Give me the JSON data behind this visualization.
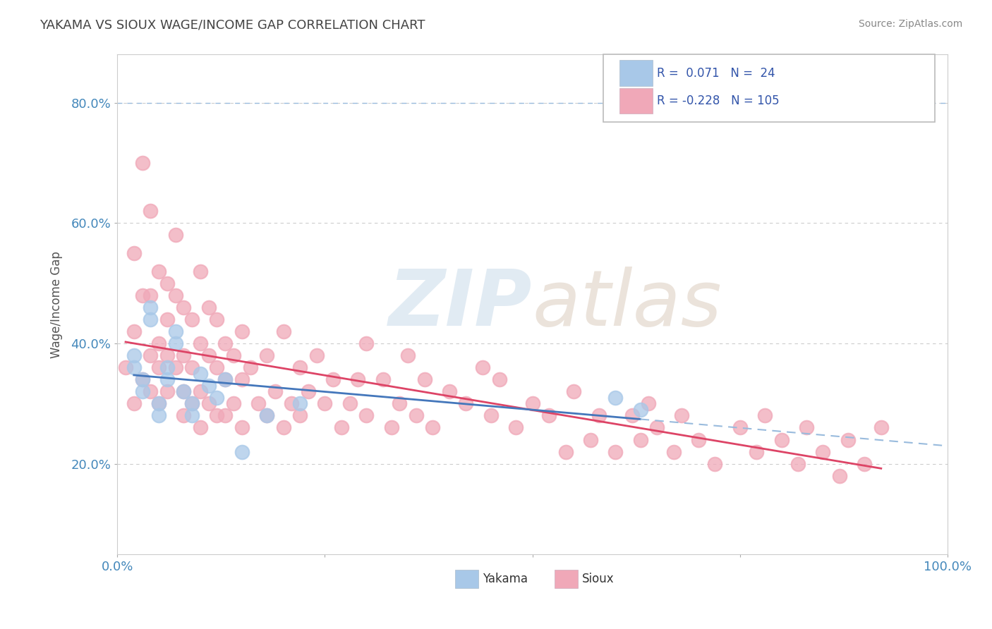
{
  "title": "YAKAMA VS SIOUX WAGE/INCOME GAP CORRELATION CHART",
  "source": "Source: ZipAtlas.com",
  "ylabel": "Wage/Income Gap",
  "xlim": [
    0.0,
    1.0
  ],
  "ylim": [
    0.05,
    0.88
  ],
  "yticks": [
    0.2,
    0.4,
    0.6,
    0.8
  ],
  "ytick_labels": [
    "20.0%",
    "40.0%",
    "60.0%",
    "80.0%"
  ],
  "xtick_labels": [
    "0.0%",
    "100.0%"
  ],
  "yakama_R": 0.071,
  "yakama_N": 24,
  "sioux_R": -0.228,
  "sioux_N": 105,
  "yakama_color": "#a8c8e8",
  "sioux_color": "#f0a8b8",
  "yakama_line_color": "#4477bb",
  "sioux_line_color": "#dd4466",
  "dashed_line_color": "#99bbdd",
  "background_color": "#ffffff",
  "grid_color": "#cccccc",
  "title_color": "#444444",
  "source_color": "#888888",
  "tick_color": "#4488bb",
  "ylabel_color": "#555555",
  "legend_text_color": "#3355aa"
}
